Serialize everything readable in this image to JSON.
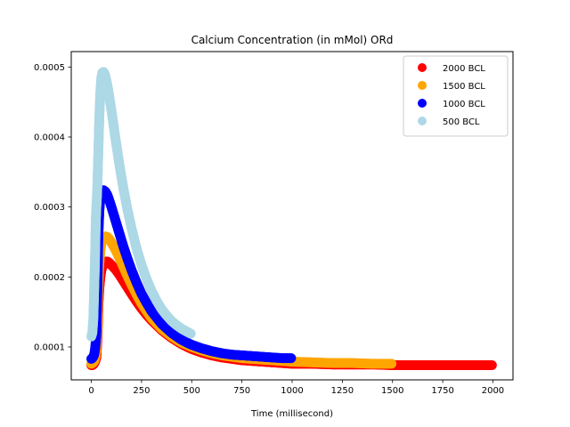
{
  "chart_data": {
    "type": "scatter",
    "title": "Calcium Concentration (in mMol) ORd",
    "xlabel": "Time (millisecond)",
    "ylabel": "",
    "xlim": [
      -100,
      2100
    ],
    "ylim": [
      5.3e-05,
      0.000522
    ],
    "xticks": [
      0,
      250,
      500,
      750,
      1000,
      1250,
      1500,
      1750,
      2000
    ],
    "xtick_labels": [
      "0",
      "250",
      "500",
      "750",
      "1000",
      "1250",
      "1500",
      "1750",
      "2000"
    ],
    "yticks": [
      0.0001,
      0.0002,
      0.0003,
      0.0004,
      0.0005
    ],
    "ytick_labels": [
      "0.0001",
      "0.0002",
      "0.0003",
      "0.0004",
      "0.0005"
    ],
    "legend_position": "top-right",
    "grid": false,
    "series": [
      {
        "name": "2000 BCL",
        "color": "#ff0000",
        "x": [
          0,
          5,
          10,
          15,
          20,
          25,
          30,
          35,
          40,
          45,
          50,
          60,
          70,
          80,
          90,
          100,
          120,
          140,
          160,
          180,
          200,
          225,
          250,
          275,
          300,
          350,
          400,
          450,
          500,
          550,
          600,
          650,
          700,
          750,
          800,
          850,
          900,
          950,
          1000,
          1100,
          1200,
          1300,
          1400,
          1500,
          1600,
          1700,
          1800,
          1900,
          1995
        ],
        "y": [
          7.4e-05,
          7.4e-05,
          7.5e-05,
          7.7e-05,
          8e-05,
          8.5e-05,
          0.00011,
          0.00016,
          0.000185,
          0.0002,
          0.00021,
          0.000218,
          0.000222,
          0.000222,
          0.00022,
          0.000217,
          0.000211,
          0.000203,
          0.000194,
          0.000185,
          0.000176,
          0.000165,
          0.000155,
          0.000146,
          0.000138,
          0.000124,
          0.000113,
          0.000104,
          9.7e-05,
          9.2e-05,
          8.8e-05,
          8.5e-05,
          8.3e-05,
          8.1e-05,
          8e-05,
          7.9e-05,
          7.8e-05,
          7.7e-05,
          7.6e-05,
          7.6e-05,
          7.5e-05,
          7.5e-05,
          7.5e-05,
          7.4e-05,
          7.4e-05,
          7.4e-05,
          7.4e-05,
          7.4e-05,
          7.4e-05
        ]
      },
      {
        "name": "1500 BCL",
        "color": "#ffa500",
        "x": [
          0,
          5,
          10,
          15,
          20,
          25,
          30,
          35,
          40,
          45,
          50,
          60,
          70,
          80,
          90,
          100,
          120,
          140,
          160,
          180,
          200,
          225,
          250,
          275,
          300,
          350,
          400,
          450,
          500,
          550,
          600,
          650,
          700,
          750,
          800,
          850,
          900,
          950,
          1000,
          1100,
          1200,
          1300,
          1400,
          1495
        ],
        "y": [
          7.6e-05,
          7.7e-05,
          7.8e-05,
          8e-05,
          8.5e-05,
          9.5e-05,
          0.00013,
          0.00019,
          0.00022,
          0.000238,
          0.000248,
          0.000256,
          0.000258,
          0.000257,
          0.000254,
          0.000249,
          0.000239,
          0.000227,
          0.000214,
          0.000201,
          0.000189,
          0.000175,
          0.000162,
          0.000151,
          0.000141,
          0.000126,
          0.000115,
          0.000106,
          0.0001,
          9.5e-05,
          9.1e-05,
          8.8e-05,
          8.6e-05,
          8.4e-05,
          8.3e-05,
          8.2e-05,
          8.1e-05,
          8e-05,
          7.9e-05,
          7.8e-05,
          7.7e-05,
          7.7e-05,
          7.6e-05,
          7.6e-05
        ]
      },
      {
        "name": "1000 BCL",
        "color": "#0000ff",
        "x": [
          0,
          5,
          10,
          15,
          20,
          25,
          30,
          35,
          40,
          45,
          50,
          55,
          60,
          70,
          80,
          90,
          100,
          120,
          140,
          160,
          180,
          200,
          225,
          250,
          275,
          300,
          350,
          400,
          450,
          500,
          550,
          600,
          650,
          700,
          750,
          800,
          850,
          900,
          950,
          995
        ],
        "y": [
          8.3e-05,
          8.4e-05,
          8.6e-05,
          9e-05,
          0.0001,
          0.00012,
          0.00018,
          0.00026,
          0.000295,
          0.000312,
          0.00032,
          0.000323,
          0.000324,
          0.000322,
          0.000317,
          0.000309,
          0.0003,
          0.000281,
          0.000262,
          0.000243,
          0.000226,
          0.00021,
          0.000192,
          0.000176,
          0.000163,
          0.000151,
          0.000133,
          0.00012,
          0.00011,
          0.000103,
          9.8e-05,
          9.4e-05,
          9.1e-05,
          8.9e-05,
          8.8e-05,
          8.7e-05,
          8.6e-05,
          8.5e-05,
          8.4e-05,
          8.4e-05
        ]
      },
      {
        "name": "500 BCL",
        "color": "#add8e6",
        "x": [
          0,
          5,
          10,
          12,
          15,
          18,
          20,
          22,
          25,
          28,
          30,
          33,
          36,
          40,
          45,
          50,
          55,
          60,
          65,
          70,
          80,
          90,
          100,
          110,
          120,
          140,
          160,
          180,
          200,
          225,
          250,
          275,
          300,
          325,
          350,
          375,
          400,
          425,
          450,
          475,
          495
        ],
        "y": [
          0.000115,
          0.00012,
          0.00014,
          0.00016,
          0.00019,
          0.00022,
          0.00025,
          0.00028,
          0.0003,
          0.000315,
          0.00033,
          0.00036,
          0.00039,
          0.00043,
          0.000465,
          0.000485,
          0.000492,
          0.000493,
          0.000491,
          0.000487,
          0.000474,
          0.000457,
          0.000438,
          0.000418,
          0.000398,
          0.00036,
          0.000326,
          0.000296,
          0.00027,
          0.000241,
          0.000217,
          0.000197,
          0.00018,
          0.000166,
          0.000154,
          0.000145,
          0.000137,
          0.000131,
          0.000126,
          0.000122,
          0.000119
        ]
      }
    ]
  }
}
